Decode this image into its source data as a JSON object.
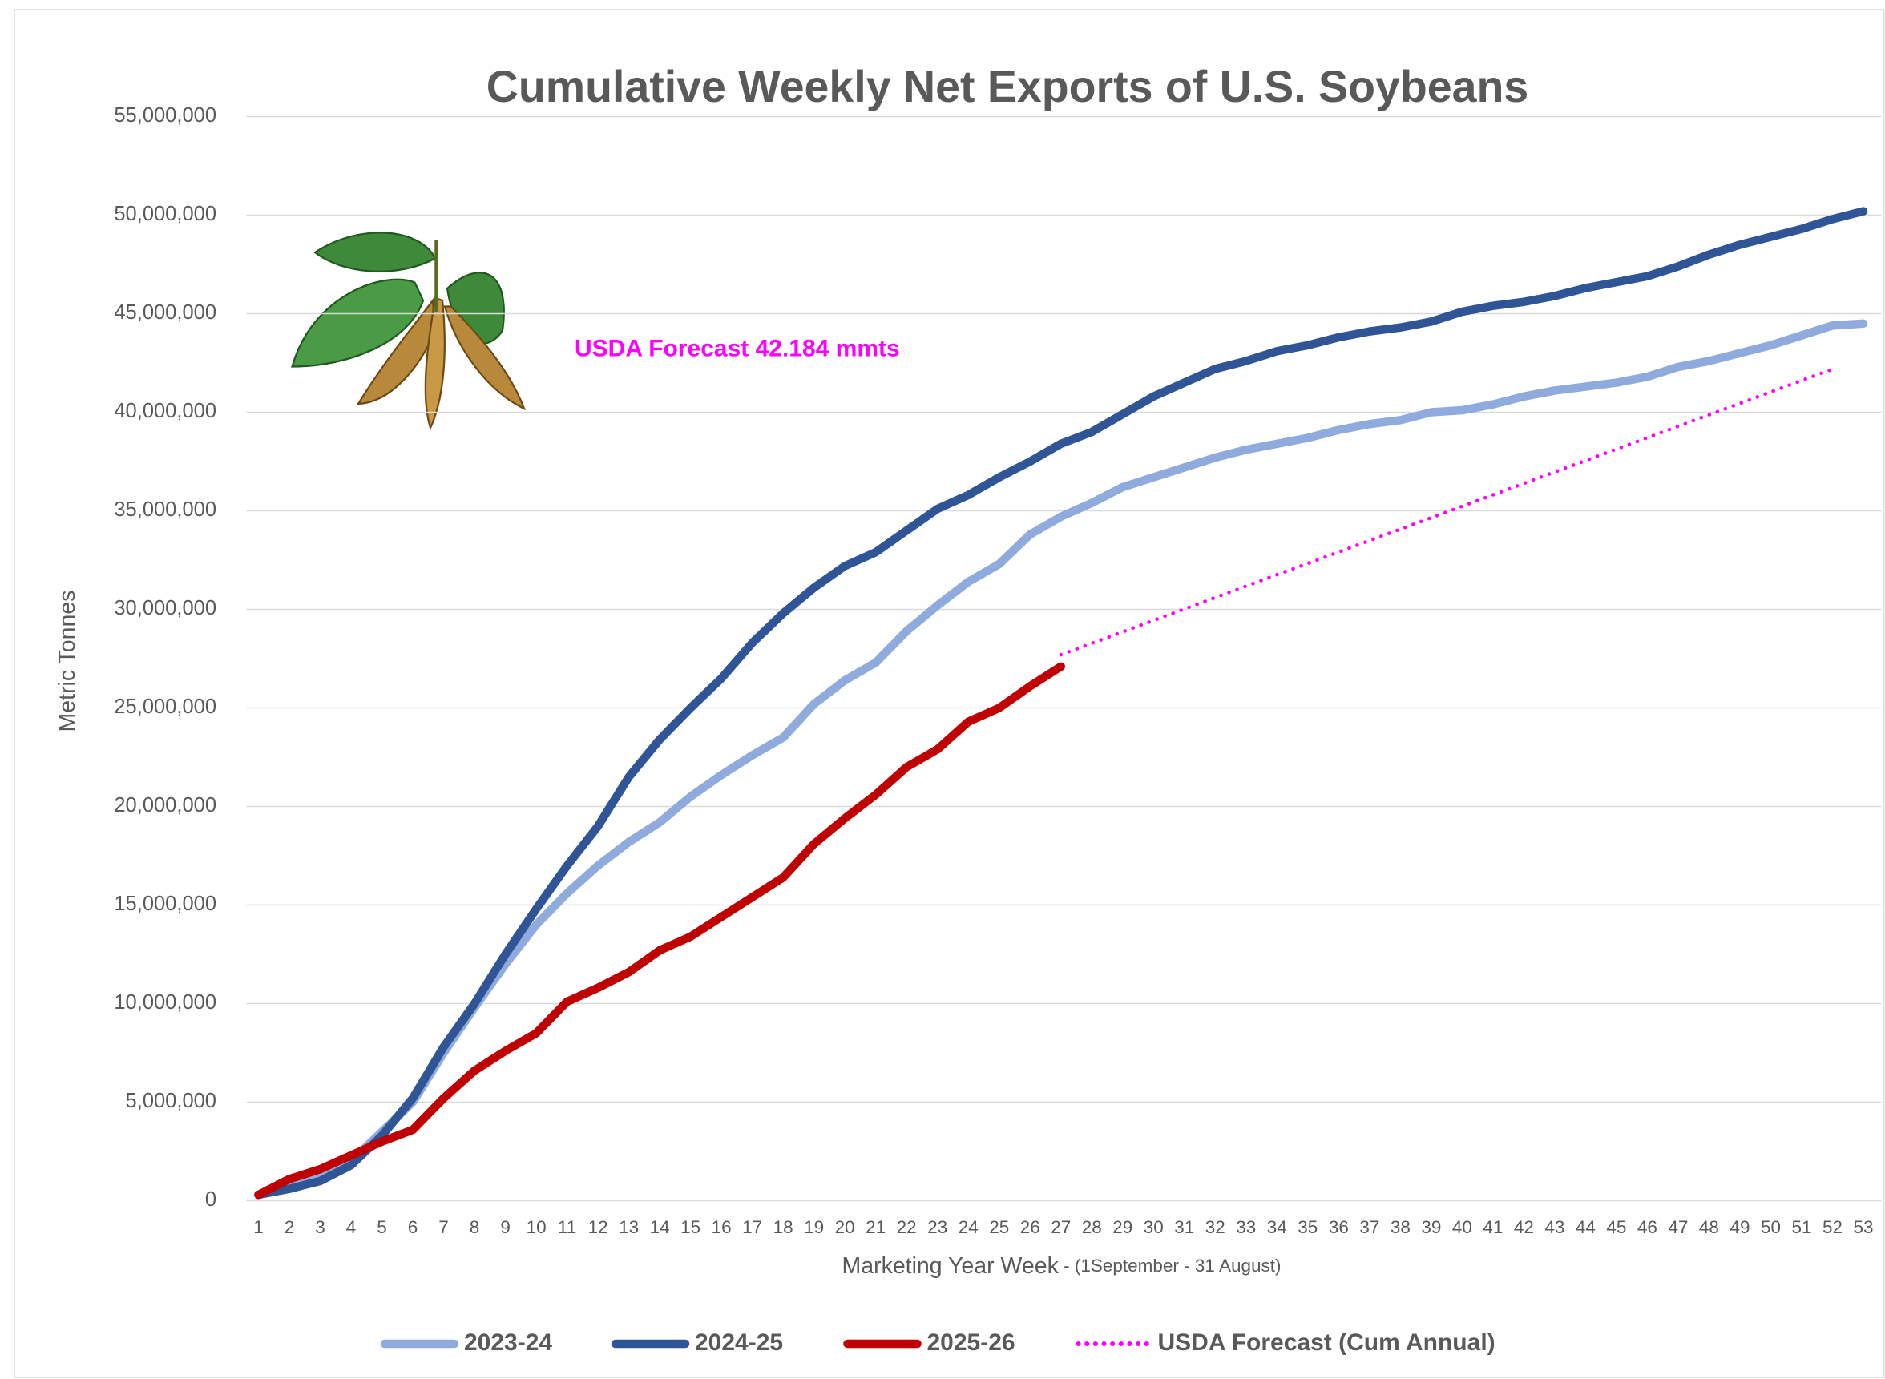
{
  "chart_data": {
    "type": "line",
    "title": "Cumulative Weekly Net Exports of U.S. Soybeans",
    "y_label": "Metric Tonnes",
    "x_label": "Marketing Year Week",
    "x_label_note": " - (1September  - 31 August)",
    "annotation": "USDA Forecast 42.184 mmts",
    "annotation_color": "#ff00ff",
    "legend": "bottom",
    "grid": true,
    "categories": [
      "1",
      "2",
      "3",
      "4",
      "5",
      "6",
      "7",
      "8",
      "9",
      "10",
      "11",
      "12",
      "13",
      "14",
      "15",
      "16",
      "17",
      "18",
      "19",
      "20",
      "21",
      "22",
      "23",
      "24",
      "25",
      "26",
      "27",
      "28",
      "29",
      "30",
      "31",
      "32",
      "33",
      "34",
      "35",
      "36",
      "37",
      "38",
      "39",
      "40",
      "41",
      "42",
      "43",
      "44",
      "45",
      "46",
      "47",
      "48",
      "49",
      "50",
      "51",
      "52",
      "53"
    ],
    "ylim": [
      0,
      55000000
    ],
    "yticks": [
      0,
      {
        "value": 5000000,
        "label": "5,000,000"
      },
      {
        "value": 10000000,
        "label": "10,000,000"
      },
      {
        "value": 15000000,
        "label": "15,000,000"
      },
      {
        "value": 20000000,
        "label": "20,000,000"
      },
      {
        "value": 25000000,
        "label": "25,000,000"
      },
      {
        "value": 30000000,
        "label": "30,000,000"
      },
      {
        "value": 35000000,
        "label": "35,000,000"
      },
      {
        "value": 40000000,
        "label": "40,000,000"
      },
      {
        "value": 45000000,
        "label": "45,000,000"
      },
      {
        "value": 50000000,
        "label": "50,000,000"
      },
      {
        "value": 55000000,
        "label": "55,000,000"
      }
    ],
    "series": [
      {
        "name": "2023-24",
        "color": "#8faadc",
        "style": "solid",
        "values": [
          300000,
          700000,
          1200000,
          2000000,
          3500000,
          5000000,
          7500000,
          9800000,
          12000000,
          14000000,
          15600000,
          17000000,
          18200000,
          19200000,
          20500000,
          21600000,
          22600000,
          23500000,
          25200000,
          26400000,
          27300000,
          28900000,
          30200000,
          31400000,
          32300000,
          33800000,
          34700000,
          35400000,
          36200000,
          36700000,
          37200000,
          37700000,
          38100000,
          38400000,
          38700000,
          39100000,
          39400000,
          39600000,
          40000000,
          40100000,
          40400000,
          40800000,
          41100000,
          41300000,
          41500000,
          41800000,
          42300000,
          42600000,
          43000000,
          43400000,
          43900000,
          44400000,
          44500000
        ]
      },
      {
        "name": "2024-25",
        "color": "#2f5597",
        "style": "solid",
        "values": [
          300000,
          600000,
          1000000,
          1800000,
          3300000,
          5200000,
          7800000,
          10000000,
          12500000,
          14800000,
          17000000,
          19000000,
          21500000,
          23400000,
          25000000,
          26500000,
          28300000,
          29800000,
          31100000,
          32200000,
          32900000,
          34000000,
          35100000,
          35800000,
          36700000,
          37500000,
          38400000,
          39000000,
          39900000,
          40800000,
          41500000,
          42200000,
          42600000,
          43100000,
          43400000,
          43800000,
          44100000,
          44300000,
          44600000,
          45100000,
          45400000,
          45600000,
          45900000,
          46300000,
          46600000,
          46900000,
          47400000,
          48000000,
          48500000,
          48900000,
          49300000,
          49800000,
          50200000
        ]
      },
      {
        "name": "2025-26",
        "color": "#c00000",
        "style": "solid",
        "values": [
          300000,
          1100000,
          1600000,
          2300000,
          3000000,
          3600000,
          5200000,
          6600000,
          7600000,
          8500000,
          10100000,
          10800000,
          11600000,
          12700000,
          13400000,
          14400000,
          15400000,
          16400000,
          18100000,
          19400000,
          20600000,
          22000000,
          22900000,
          24300000,
          25000000,
          26100000,
          27100000,
          null,
          null,
          null,
          null,
          null,
          null,
          null,
          null,
          null,
          null,
          null,
          null,
          null,
          null,
          null,
          null,
          null,
          null,
          null,
          null,
          null,
          null,
          null,
          null,
          null,
          null
        ]
      },
      {
        "name": "USDA Forecast (Cum Annual)",
        "color": "#ff00ff",
        "style": "dotted",
        "values": [
          null,
          null,
          null,
          null,
          null,
          null,
          null,
          null,
          null,
          null,
          null,
          null,
          null,
          null,
          null,
          null,
          null,
          null,
          null,
          null,
          null,
          null,
          null,
          null,
          null,
          null,
          27700000,
          28280000,
          28860000,
          29440000,
          30020000,
          30600000,
          31180000,
          31760000,
          32330000,
          32910000,
          33490000,
          34070000,
          34650000,
          35230000,
          35810000,
          36390000,
          36970000,
          37550000,
          38130000,
          38710000,
          39290000,
          39870000,
          40450000,
          41030000,
          41610000,
          42184000,
          null
        ]
      }
    ]
  }
}
